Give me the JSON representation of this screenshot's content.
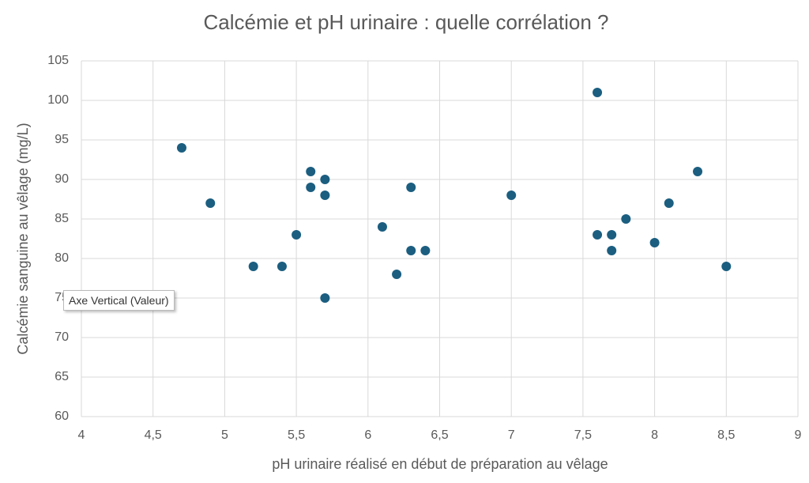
{
  "chart_data": {
    "type": "scatter",
    "title": "Calcémie et pH urinaire : quelle corrélation ?",
    "x_label": "pH urinaire réalisé en début de préparation au vêlage",
    "y_label": "Calcémie sanguine au vêlage (mg/L)",
    "tooltip": "Axe Vertical (Valeur)",
    "color": "#1b5e80",
    "grid": true,
    "xlim": [
      4,
      9
    ],
    "xticks": [
      4,
      {
        "value": 4.5,
        "label": "4,5"
      },
      5,
      {
        "value": 5.5,
        "label": "5,5"
      },
      6,
      {
        "value": 6.5,
        "label": "6,5"
      },
      7,
      {
        "value": 7.5,
        "label": "7,5"
      },
      8,
      {
        "value": 8.5,
        "label": "8,5"
      },
      9
    ],
    "ylim": [
      60,
      105
    ],
    "yticks": [
      60,
      65,
      70,
      75,
      80,
      85,
      90,
      95,
      100,
      105
    ],
    "x": [
      4.7,
      4.9,
      5.2,
      5.4,
      5.5,
      5.6,
      5.6,
      5.7,
      5.7,
      5.7,
      6.1,
      6.2,
      6.3,
      6.3,
      6.4,
      7,
      7.6,
      7.6,
      7.7,
      7.7,
      7.8,
      8,
      8.1,
      8.3,
      8.5
    ],
    "values": [
      94,
      87,
      79,
      79,
      83,
      91,
      89,
      90,
      88,
      75,
      84,
      78,
      89,
      81,
      81,
      88,
      101,
      83,
      83,
      81,
      85,
      82,
      87,
      91,
      79
    ]
  }
}
